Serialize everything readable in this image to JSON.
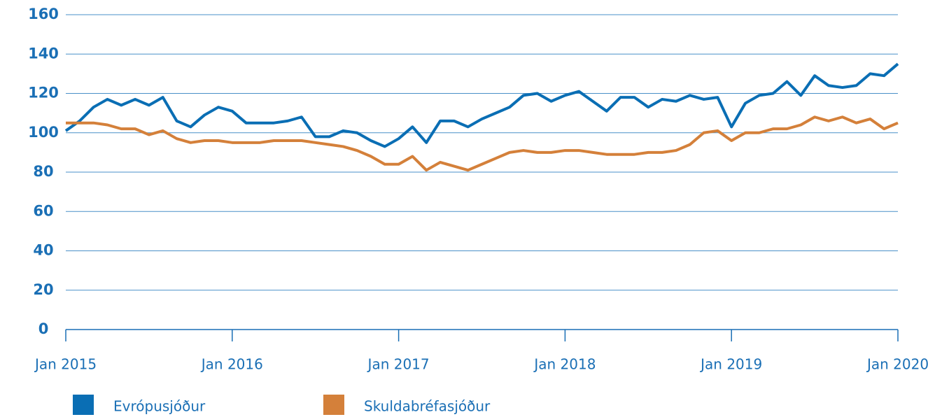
{
  "chart_data": {
    "type": "line",
    "categories": [
      "Jan 2015",
      null,
      null,
      null,
      null,
      null,
      null,
      null,
      null,
      null,
      null,
      null,
      "Jan 2016",
      null,
      null,
      null,
      null,
      null,
      null,
      null,
      null,
      null,
      null,
      null,
      "Jan 2017",
      null,
      null,
      null,
      null,
      null,
      null,
      null,
      null,
      null,
      null,
      null,
      "Jan 2018",
      null,
      null,
      null,
      null,
      null,
      null,
      null,
      null,
      null,
      null,
      null,
      "Jan 2019",
      null,
      null,
      null,
      null,
      null,
      null,
      null,
      null,
      null,
      null,
      null,
      "Jan 2020"
    ],
    "series": [
      {
        "name": "Evrópusjóður",
        "color": "#0a6eb4",
        "values": [
          101,
          106,
          113,
          117,
          114,
          117,
          114,
          118,
          106,
          103,
          109,
          113,
          111,
          105,
          105,
          105,
          106,
          108,
          98,
          98,
          101,
          100,
          96,
          93,
          97,
          103,
          95,
          106,
          106,
          103,
          107,
          110,
          113,
          119,
          120,
          116,
          119,
          121,
          116,
          111,
          118,
          118,
          113,
          117,
          116,
          119,
          117,
          118,
          103,
          115,
          119,
          120,
          126,
          119,
          129,
          124,
          123,
          124,
          130,
          129,
          135
        ]
      },
      {
        "name": "Skuldabréfasjóður",
        "color": "#d4803a",
        "values": [
          105,
          105,
          105,
          104,
          102,
          102,
          99,
          101,
          97,
          95,
          96,
          96,
          95,
          95,
          95,
          96,
          96,
          96,
          95,
          94,
          93,
          91,
          88,
          84,
          84,
          88,
          81,
          85,
          83,
          81,
          84,
          87,
          90,
          91,
          90,
          90,
          91,
          91,
          90,
          89,
          89,
          89,
          90,
          90,
          91,
          94,
          100,
          101,
          96,
          100,
          100,
          102,
          102,
          104,
          108,
          106,
          108,
          105,
          107,
          102,
          105
        ]
      }
    ],
    "ylim": [
      0,
      160
    ],
    "yticks": [
      0,
      20,
      40,
      60,
      80,
      100,
      120,
      140,
      160
    ],
    "grid": true
  }
}
